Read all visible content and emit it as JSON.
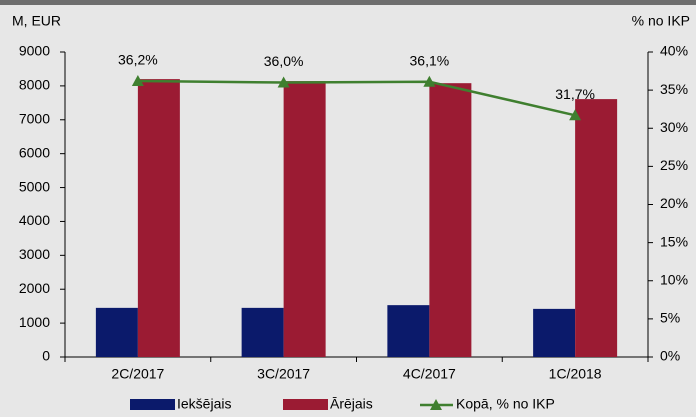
{
  "chart_data": {
    "type": "bar",
    "y_axis_label": "M, EUR",
    "y2_axis_label": "% no IKP",
    "categories": [
      "2C/2017",
      "3C/2017",
      "4C/2017",
      "1C/2018"
    ],
    "series": [
      {
        "name": "Iekšējais",
        "color": "#0b1a6b",
        "values": [
          1450,
          1450,
          1530,
          1420
        ]
      },
      {
        "name": "Ārējais",
        "color": "#9b1b33",
        "values": [
          8200,
          8140,
          8080,
          7610
        ]
      },
      {
        "name": "Kopā, % no IKP",
        "color": "#3f7f2f",
        "type": "line",
        "axis": "y2",
        "values": [
          36.2,
          36.0,
          36.1,
          31.7
        ],
        "value_labels": [
          "36,2%",
          "36,0%",
          "36,1%",
          "31,7%"
        ]
      }
    ],
    "ylim": [
      0,
      9000
    ],
    "yticks": [
      0,
      1000,
      2000,
      3000,
      4000,
      5000,
      6000,
      7000,
      8000,
      9000
    ],
    "y2lim": [
      0,
      40
    ],
    "y2ticks": [
      {
        "value": 0,
        "label": "0%"
      },
      {
        "value": 5,
        "label": "5%"
      },
      {
        "value": 10,
        "label": "10%"
      },
      {
        "value": 15,
        "label": "15%"
      },
      {
        "value": 20,
        "label": "20%"
      },
      {
        "value": 25,
        "label": "25%"
      },
      {
        "value": 30,
        "label": "30%"
      },
      {
        "value": 35,
        "label": "35%"
      },
      {
        "value": 40,
        "label": "40%"
      }
    ]
  }
}
